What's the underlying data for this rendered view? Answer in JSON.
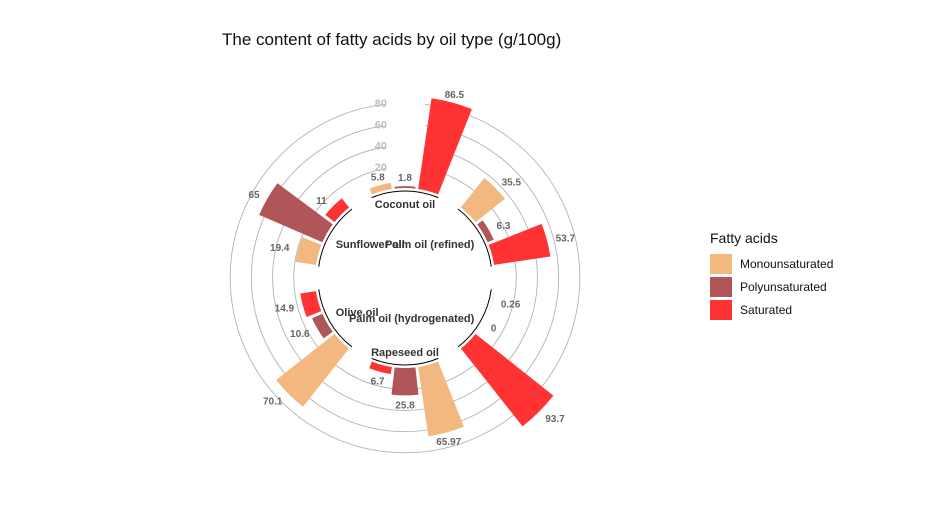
{
  "colors": {
    "Monounsaturated": "#f2b880",
    "Polyunsaturated": "#b05558",
    "Saturated": "#ff3333",
    "grid": "#b3b3b3",
    "axis_text": "#bdbdbd",
    "value_text": "#666666",
    "group_text": "#333333"
  },
  "legend": {
    "title": "Fatty acids",
    "items": [
      {
        "label": "Monounsaturated",
        "key": "Monounsaturated"
      },
      {
        "label": "Polyunsaturated",
        "key": "Polyunsaturated"
      },
      {
        "label": "Saturated",
        "key": "Saturated"
      }
    ]
  },
  "chart_data": {
    "type": "bar",
    "coord": "polar",
    "title": "The content of fatty acids by oil type (g/100g)",
    "radial_ticks": [
      20,
      40,
      60,
      80
    ],
    "categories": [
      "Palm oil (refined)",
      "Palm oil (hydrogenated)",
      "Rapeseed oil",
      "Olive oil",
      "Sunflower oil",
      "Coconut oil"
    ],
    "series": [
      {
        "name": "Monounsaturated",
        "values": [
          35.5,
          0.26,
          65.97,
          70.1,
          19.4,
          5.8
        ],
        "labels": [
          "35.5",
          "0.26",
          "65.97",
          "70.1",
          "19.4",
          "5.8"
        ]
      },
      {
        "name": "Polyunsaturated",
        "values": [
          6.3,
          0,
          25.8,
          10.6,
          65,
          1.8
        ],
        "labels": [
          "6.3",
          "0",
          "25.8",
          "10.6",
          "65",
          "1.8"
        ]
      },
      {
        "name": "Saturated",
        "values": [
          53.7,
          93.7,
          6.7,
          14.9,
          11,
          86.5
        ],
        "labels": [
          "53.7",
          "93.7",
          "6.7",
          "14.9",
          "11",
          "86.5"
        ]
      }
    ]
  }
}
